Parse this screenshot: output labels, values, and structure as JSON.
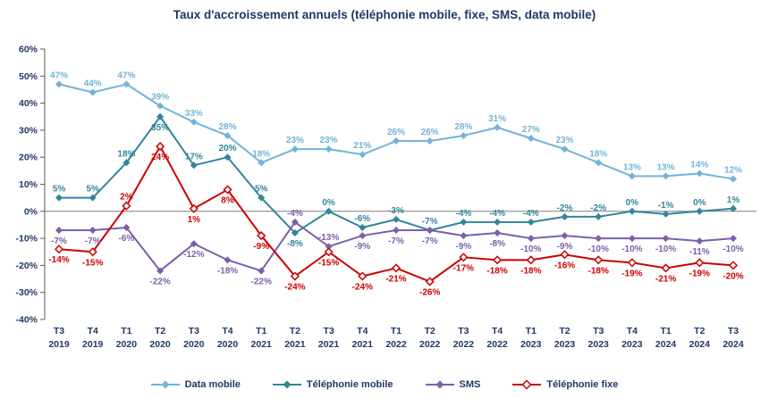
{
  "title": "Taux d'accroissement annuels (téléphonie mobile, fixe, SMS, data mobile)",
  "colors": {
    "title_text": "#1F3864",
    "axis_text": "#1F3864",
    "axis_line": "#595959"
  },
  "chart_data": {
    "type": "line",
    "title": "Taux d'accroissement annuels (téléphonie mobile, fixe, SMS, data mobile)",
    "xlabel": "",
    "ylabel": "",
    "ylim": [
      -40,
      60
    ],
    "ytick_step": 10,
    "yticks": [
      "60%",
      "50%",
      "40%",
      "30%",
      "20%",
      "10%",
      "0%",
      "-10%",
      "-20%",
      "-30%",
      "-40%"
    ],
    "grid": false,
    "legend_position": "bottom",
    "categories": [
      {
        "q": "T3",
        "year": "2019"
      },
      {
        "q": "T4",
        "year": "2019"
      },
      {
        "q": "T1",
        "year": "2020"
      },
      {
        "q": "T2",
        "year": "2020"
      },
      {
        "q": "T3",
        "year": "2020"
      },
      {
        "q": "T4",
        "year": "2020"
      },
      {
        "q": "T1",
        "year": "2021"
      },
      {
        "q": "T2",
        "year": "2021"
      },
      {
        "q": "T3",
        "year": "2021"
      },
      {
        "q": "T4",
        "year": "2021"
      },
      {
        "q": "T1",
        "year": "2022"
      },
      {
        "q": "T2",
        "year": "2022"
      },
      {
        "q": "T3",
        "year": "2022"
      },
      {
        "q": "T4",
        "year": "2022"
      },
      {
        "q": "T1",
        "year": "2023"
      },
      {
        "q": "T2",
        "year": "2023"
      },
      {
        "q": "T3",
        "year": "2023"
      },
      {
        "q": "T4",
        "year": "2023"
      },
      {
        "q": "T1",
        "year": "2024"
      },
      {
        "q": "T2",
        "year": "2024"
      },
      {
        "q": "T3",
        "year": "2024"
      }
    ],
    "series": [
      {
        "name": "Data mobile",
        "color": "#74B3D8",
        "marker": "diamond",
        "values": [
          47,
          44,
          47,
          39,
          33,
          28,
          18,
          23,
          23,
          21,
          26,
          26,
          28,
          31,
          27,
          23,
          18,
          13,
          13,
          14,
          12
        ]
      },
      {
        "name": "Téléphonie mobile",
        "color": "#31859C",
        "marker": "diamond",
        "values": [
          5,
          5,
          18,
          35,
          17,
          20,
          5,
          -8,
          0,
          -6,
          -3,
          -7,
          -4,
          -4,
          -4,
          -2,
          -2,
          0,
          -1,
          0,
          1
        ]
      },
      {
        "name": "SMS",
        "color": "#7B5FA9",
        "marker": "diamond",
        "values": [
          -7,
          -7,
          -6,
          -22,
          -12,
          -18,
          -22,
          -4,
          -13,
          -9,
          -7,
          -7,
          -9,
          -8,
          -10,
          -9,
          -10,
          -10,
          -10,
          -11,
          -10
        ]
      },
      {
        "name": "Téléphonie fixe",
        "color": "#CC0000",
        "marker": "hollow-diamond",
        "values": [
          -14,
          -15,
          2,
          24,
          1,
          8,
          -9,
          -24,
          -15,
          -24,
          -21,
          -26,
          -17,
          -18,
          -18,
          -16,
          -18,
          -19,
          -21,
          -19,
          -20
        ]
      }
    ]
  }
}
